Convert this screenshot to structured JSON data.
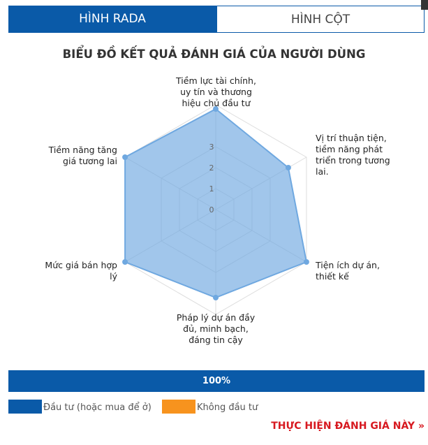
{
  "tabs": [
    "HÌNH RADA",
    "HÌNH CỘT"
  ],
  "chart_data": {
    "type": "radar",
    "title": "BIỂU ĐỒ KẾT QUẢ ĐÁNH GIÁ CỦA NGƯỜI DÙNG",
    "categories": [
      "Tiềm lực tài chính, uy tín và thương hiệu chủ đầu tư",
      "Vị trí thuận tiện, tiềm năng phát triển trong tương lai.",
      "Tiện ích dự án, thiết kế",
      "Pháp lý dự án đầy đủ, minh bạch, đáng tin cậy",
      "Mức giá bán hợp lý",
      "Tiềm năng tăng giá tương lai"
    ],
    "values": [
      4.8,
      4,
      5,
      4.2,
      5,
      5
    ],
    "color": "#6fa8e0",
    "ylim": [
      0,
      5
    ],
    "yticks": [
      0,
      1,
      2,
      3
    ]
  },
  "progress": {
    "value": 100,
    "label": "100%"
  },
  "legend": [
    {
      "label": "Đầu tư (hoặc mua để ở)",
      "color": "#0a5aa8"
    },
    {
      "label": "Không đầu tư",
      "color": "#f7931e"
    }
  ],
  "link": "THỰC HIỆN ĐÁNH GIÁ NÀY »"
}
